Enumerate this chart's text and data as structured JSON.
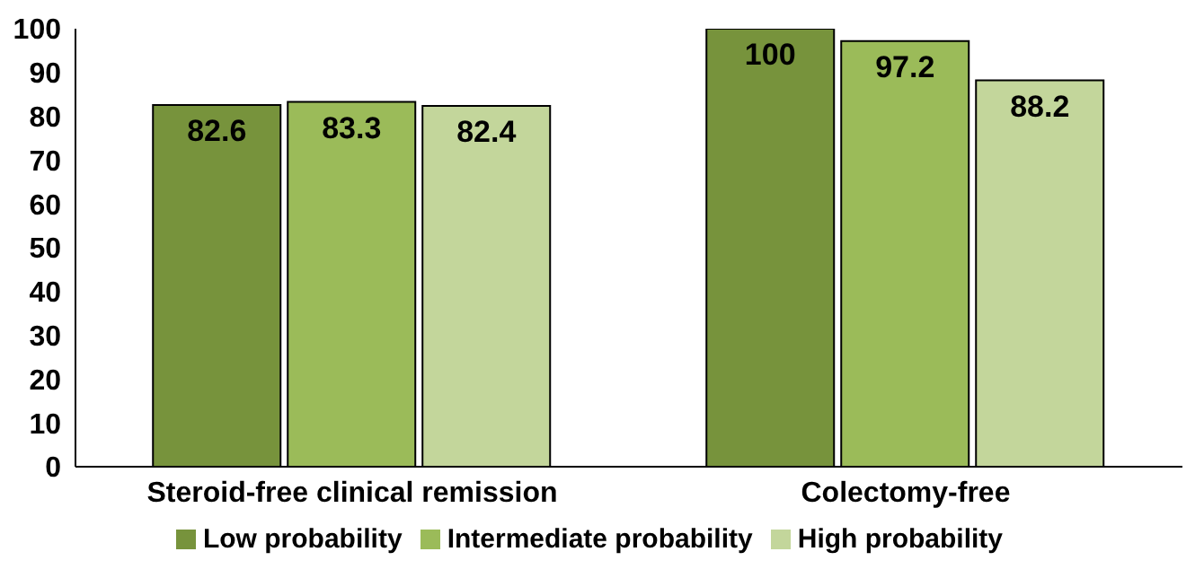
{
  "chart_data": {
    "type": "bar",
    "categories": [
      "Steroid-free clinical remission",
      "Colectomy-free"
    ],
    "series": [
      {
        "name": "Low probability",
        "color": "#77933c",
        "values": [
          82.6,
          100
        ]
      },
      {
        "name": "Intermediate probability",
        "color": "#9bbb59",
        "values": [
          83.3,
          97.2
        ]
      },
      {
        "name": "High probability",
        "color": "#c3d69b",
        "values": [
          82.4,
          88.2
        ]
      }
    ],
    "ylim": [
      0,
      100
    ],
    "yticks": [
      0,
      10,
      20,
      30,
      40,
      50,
      60,
      70,
      80,
      90,
      100
    ],
    "grid": false,
    "legend": "bottom",
    "data_labels": true
  }
}
